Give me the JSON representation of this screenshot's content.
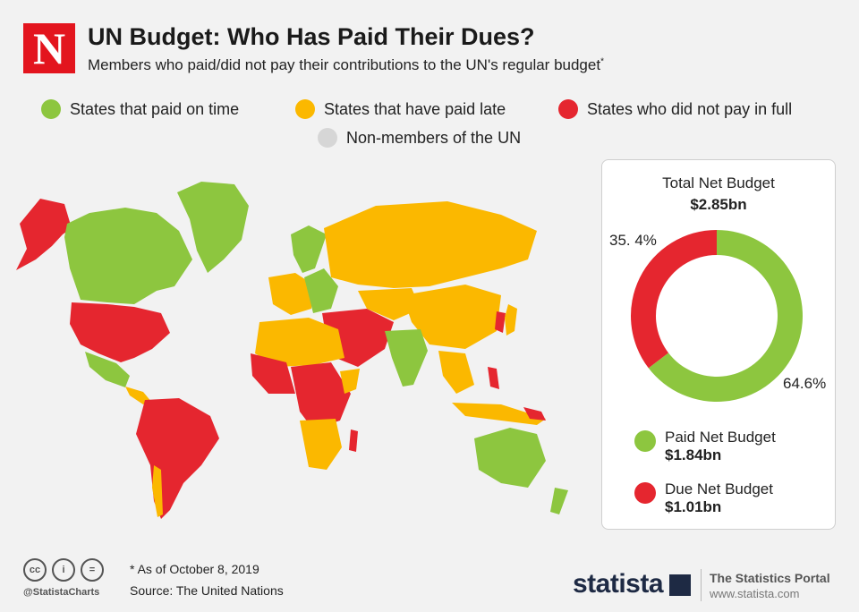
{
  "header": {
    "logo_letter": "N",
    "title": "UN Budget: Who Has Paid Their Dues?",
    "subtitle": "Members who paid/did not pay their contributions to the UN's regular budget",
    "subtitle_mark": "*"
  },
  "legend": [
    {
      "label": "States that paid on time",
      "color": "#8dc63f"
    },
    {
      "label": "States that have paid late",
      "color": "#fbb800"
    },
    {
      "label": "States who did not pay in full",
      "color": "#e5262f"
    },
    {
      "label": "Non-members of the UN",
      "color": "#d6d6d6"
    }
  ],
  "chart_data": {
    "type": "pie",
    "title": "Total Net Budget",
    "total": "$2.85bn",
    "slices": [
      {
        "label": "Paid Net Budget",
        "value": 64.6,
        "display": "64.6%",
        "amount": "$1.84bn",
        "color": "#8dc63f"
      },
      {
        "label": "Due Net Budget",
        "value": 35.4,
        "display": "35. 4%",
        "amount": "$1.01bn",
        "color": "#e5262f"
      }
    ]
  },
  "footer": {
    "note": "* As of October 8, 2019",
    "source": "Source: The United Nations",
    "handle": "@StatistaCharts",
    "icons": [
      "cc-icon",
      "person-icon",
      "equal-icon"
    ],
    "icon_glyphs": [
      "cc",
      "i",
      "="
    ],
    "brand": "statista",
    "portal": "The Statistics Portal",
    "url": "www.statista.com"
  }
}
